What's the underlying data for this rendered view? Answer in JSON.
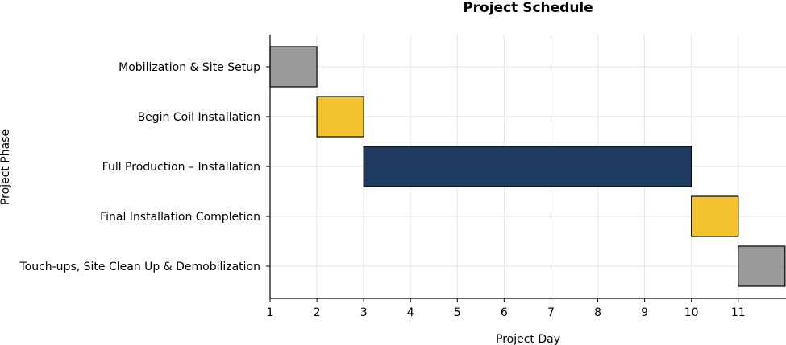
{
  "chart_data": {
    "type": "gantt",
    "title": "Project Schedule",
    "xlabel": "Project Day",
    "ylabel": "Project Phase",
    "xlim": [
      1,
      12.02
    ],
    "x_ticks": [
      1,
      2,
      3,
      4,
      5,
      6,
      7,
      8,
      9,
      10,
      11
    ],
    "grid": true,
    "tasks": [
      {
        "label": "Mobilization & Site Setup",
        "start": 1,
        "end": 2,
        "color": "#9b9b9b"
      },
      {
        "label": "Begin Coil Installation",
        "start": 2,
        "end": 3,
        "color": "#f2c230"
      },
      {
        "label": "Full Production – Installation",
        "start": 3,
        "end": 10,
        "color": "#1f3a5f"
      },
      {
        "label": "Final Installation Completion",
        "start": 10,
        "end": 11,
        "color": "#f2c230"
      },
      {
        "label": "Touch-ups, Site Clean Up & Demobilization",
        "start": 11,
        "end": 12,
        "color": "#9b9b9b"
      }
    ]
  }
}
